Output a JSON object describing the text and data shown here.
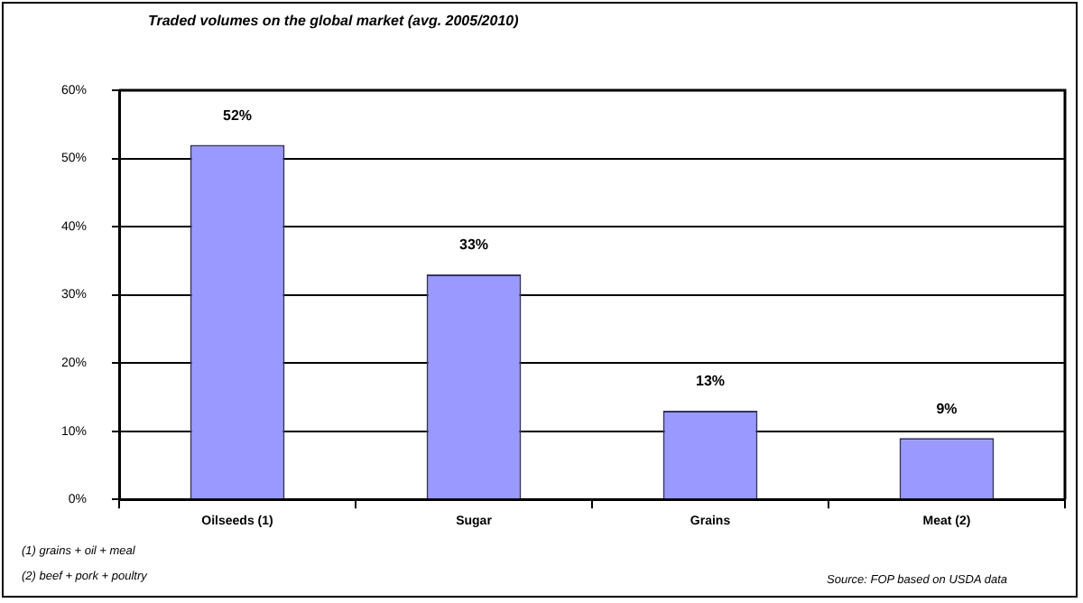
{
  "chart_data": {
    "type": "bar",
    "title": "Traded volumes on the global market (avg. 2005/2010)",
    "categories": [
      "Oilseeds (1)",
      "Sugar",
      "Grains",
      "Meat (2)"
    ],
    "values": [
      52,
      33,
      13,
      9
    ],
    "value_labels": [
      "52%",
      "33%",
      "13%",
      "9%"
    ],
    "color": "#9999ff",
    "ylim": [
      0,
      60
    ],
    "yticks": [
      {
        "value": 0,
        "label": "0%"
      },
      {
        "value": 10,
        "label": "10%"
      },
      {
        "value": 20,
        "label": "20%"
      },
      {
        "value": 30,
        "label": "30%"
      },
      {
        "value": 40,
        "label": "40%"
      },
      {
        "value": 50,
        "label": "50%"
      },
      {
        "value": 60,
        "label": "60%"
      }
    ],
    "grid": "y",
    "annotations": [
      "(1) grains + oil  + meal",
      "(2) beef + pork + poultry",
      "Source: FOP based on USDA data"
    ]
  }
}
